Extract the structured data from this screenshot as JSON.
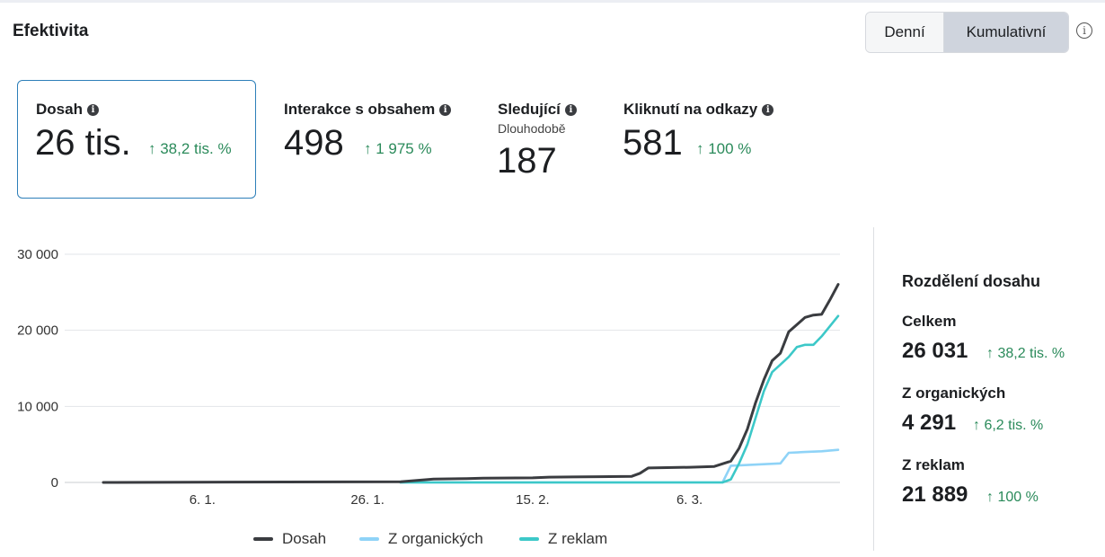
{
  "header": {
    "title": "Efektivita",
    "tabs": [
      {
        "label": "Denní",
        "active": false
      },
      {
        "label": "Kumulativní",
        "active": true
      }
    ]
  },
  "metrics": [
    {
      "title": "Dosah",
      "value": "26 tis.",
      "change": "↑ 38,2 tis. %",
      "selected": true
    },
    {
      "title": "Interakce s obsahem",
      "value": "498",
      "change": "↑ 1 975 %"
    },
    {
      "title": "Sledující",
      "subtitle": "Dlouhodobě",
      "value": "187"
    },
    {
      "title": "Kliknutí na odkazy",
      "value": "581",
      "change": "↑ 100 %"
    }
  ],
  "legend": [
    {
      "label": "Dosah",
      "color": "#3a3c40"
    },
    {
      "label": "Z organických",
      "color": "#8fd3f7"
    },
    {
      "label": "Z reklam",
      "color": "#3cc8c8"
    }
  ],
  "breakdown": {
    "title": "Rozdělení dosahu",
    "items": [
      {
        "label": "Celkem",
        "value": "26 031",
        "change": "↑ 38,2 tis. %"
      },
      {
        "label": "Z organických",
        "value": "4 291",
        "change": "↑ 6,2 tis. %"
      },
      {
        "label": "Z reklam",
        "value": "21 889",
        "change": "↑ 100 %"
      }
    ]
  },
  "chart_data": {
    "type": "line",
    "x_ticks": [
      "6. 1.",
      "26. 1.",
      "15. 2.",
      "6. 3."
    ],
    "y_ticks": [
      "0",
      "10 000",
      "20 000",
      "30 000"
    ],
    "ylim": [
      0,
      30000
    ],
    "x_start": "2022-12-25",
    "x_end": "2023-03-24",
    "series": [
      {
        "name": "Dosah",
        "color": "#3a3c40",
        "points": [
          [
            "2022-12-25",
            0
          ],
          [
            "2023-01-30",
            100
          ],
          [
            "2023-02-03",
            450
          ],
          [
            "2023-02-07",
            500
          ],
          [
            "2023-02-09",
            560
          ],
          [
            "2023-02-15",
            600
          ],
          [
            "2023-02-17",
            700
          ],
          [
            "2023-02-23",
            750
          ],
          [
            "2023-02-27",
            800
          ],
          [
            "2023-02-28",
            1200
          ],
          [
            "2023-03-01",
            1900
          ],
          [
            "2023-03-06",
            2000
          ],
          [
            "2023-03-09",
            2100
          ],
          [
            "2023-03-11",
            2800
          ],
          [
            "2023-03-12",
            4500
          ],
          [
            "2023-03-13",
            7000
          ],
          [
            "2023-03-14",
            10500
          ],
          [
            "2023-03-15",
            13500
          ],
          [
            "2023-03-16",
            16000
          ],
          [
            "2023-03-17",
            17000
          ],
          [
            "2023-03-18",
            19800
          ],
          [
            "2023-03-20",
            21700
          ],
          [
            "2023-03-21",
            22000
          ],
          [
            "2023-03-22",
            22100
          ],
          [
            "2023-03-23",
            24000
          ],
          [
            "2023-03-24",
            26031
          ]
        ]
      },
      {
        "name": "Z organických",
        "color": "#8fd3f7",
        "points": [
          [
            "2023-01-30",
            0
          ],
          [
            "2023-03-10",
            0
          ],
          [
            "2023-03-11",
            2200
          ],
          [
            "2023-03-15",
            2400
          ],
          [
            "2023-03-17",
            2500
          ],
          [
            "2023-03-18",
            3900
          ],
          [
            "2023-03-20",
            4000
          ],
          [
            "2023-03-22",
            4100
          ],
          [
            "2023-03-24",
            4291
          ]
        ]
      },
      {
        "name": "Z reklam",
        "color": "#3cc8c8",
        "points": [
          [
            "2023-01-30",
            0
          ],
          [
            "2023-03-10",
            0
          ],
          [
            "2023-03-11",
            400
          ],
          [
            "2023-03-12",
            2500
          ],
          [
            "2023-03-13",
            5000
          ],
          [
            "2023-03-14",
            8500
          ],
          [
            "2023-03-15",
            12000
          ],
          [
            "2023-03-16",
            14500
          ],
          [
            "2023-03-17",
            15500
          ],
          [
            "2023-03-18",
            16500
          ],
          [
            "2023-03-19",
            17800
          ],
          [
            "2023-03-20",
            18100
          ],
          [
            "2023-03-21",
            18100
          ],
          [
            "2023-03-22",
            19200
          ],
          [
            "2023-03-24",
            21889
          ]
        ]
      }
    ]
  }
}
